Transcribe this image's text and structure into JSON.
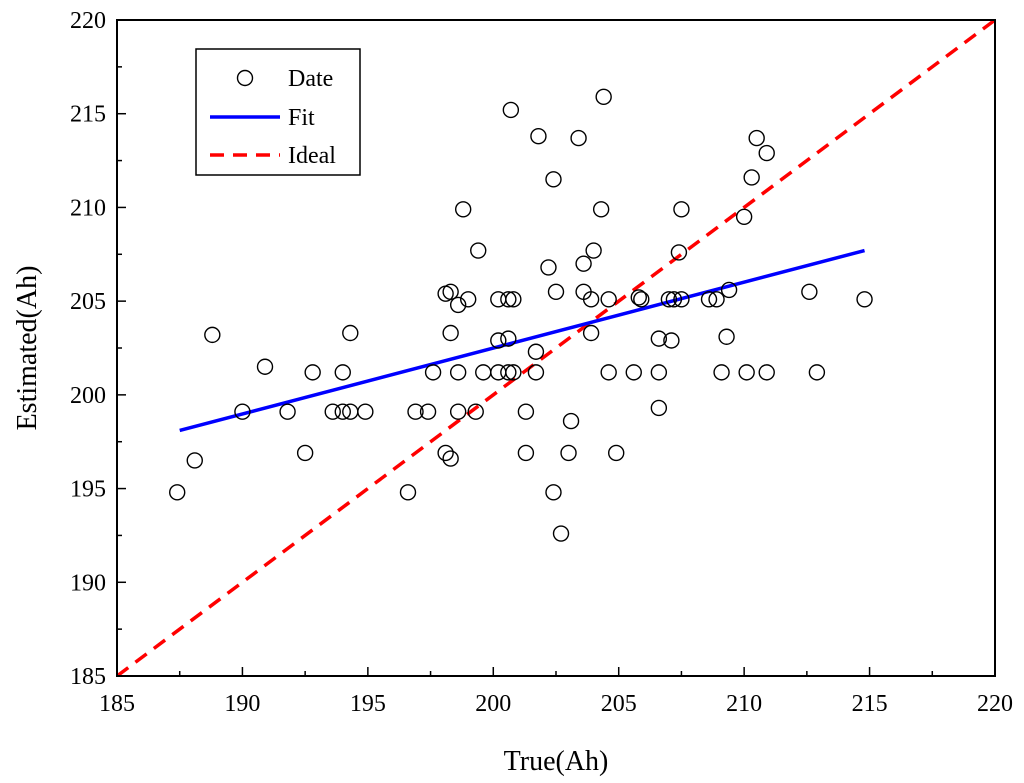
{
  "chart_data": {
    "type": "scatter",
    "xlabel": "True(Ah)",
    "ylabel": "Estimated(Ah)",
    "xlim": [
      185,
      220
    ],
    "ylim": [
      185,
      220
    ],
    "xticks": [
      "185",
      "190",
      "195",
      "200",
      "205",
      "210",
      "215",
      "220"
    ],
    "yticks": [
      "185",
      "190",
      "195",
      "200",
      "205",
      "210",
      "215",
      "220"
    ],
    "grid": false,
    "legend_position": "top-left",
    "series": [
      {
        "name": "Date",
        "kind": "scatter",
        "marker": "open-circle",
        "color": "#000000",
        "points": [
          [
            187.4,
            194.8
          ],
          [
            188.1,
            196.5
          ],
          [
            188.8,
            203.2
          ],
          [
            190.0,
            199.1
          ],
          [
            190.9,
            201.5
          ],
          [
            191.8,
            199.1
          ],
          [
            192.5,
            196.9
          ],
          [
            192.8,
            201.2
          ],
          [
            193.6,
            199.1
          ],
          [
            194.0,
            201.2
          ],
          [
            194.0,
            199.1
          ],
          [
            194.3,
            199.1
          ],
          [
            194.3,
            203.3
          ],
          [
            194.9,
            199.1
          ],
          [
            196.6,
            194.8
          ],
          [
            196.9,
            199.1
          ],
          [
            197.4,
            199.1
          ],
          [
            197.6,
            201.2
          ],
          [
            198.1,
            205.4
          ],
          [
            198.1,
            196.9
          ],
          [
            198.3,
            205.5
          ],
          [
            198.3,
            203.3
          ],
          [
            198.3,
            196.6
          ],
          [
            198.6,
            199.1
          ],
          [
            198.6,
            201.2
          ],
          [
            198.6,
            204.8
          ],
          [
            198.8,
            209.9
          ],
          [
            199.0,
            205.1
          ],
          [
            199.3,
            199.1
          ],
          [
            199.4,
            207.7
          ],
          [
            199.6,
            201.2
          ],
          [
            200.2,
            202.9
          ],
          [
            200.2,
            201.2
          ],
          [
            200.2,
            205.1
          ],
          [
            200.6,
            205.1
          ],
          [
            200.6,
            203.0
          ],
          [
            200.6,
            201.2
          ],
          [
            200.7,
            215.2
          ],
          [
            200.8,
            201.2
          ],
          [
            200.8,
            205.1
          ],
          [
            201.3,
            196.9
          ],
          [
            201.3,
            199.1
          ],
          [
            201.7,
            202.3
          ],
          [
            201.7,
            201.2
          ],
          [
            201.8,
            213.8
          ],
          [
            202.2,
            206.8
          ],
          [
            202.4,
            211.5
          ],
          [
            202.4,
            194.8
          ],
          [
            202.5,
            205.5
          ],
          [
            202.7,
            192.6
          ],
          [
            203.0,
            196.9
          ],
          [
            203.1,
            198.6
          ],
          [
            203.4,
            213.7
          ],
          [
            203.6,
            207.0
          ],
          [
            203.6,
            205.5
          ],
          [
            203.9,
            205.1
          ],
          [
            203.9,
            203.3
          ],
          [
            204.0,
            207.7
          ],
          [
            204.3,
            209.9
          ],
          [
            204.4,
            215.9
          ],
          [
            204.6,
            205.1
          ],
          [
            204.6,
            201.2
          ],
          [
            204.9,
            196.9
          ],
          [
            205.6,
            201.2
          ],
          [
            205.8,
            205.2
          ],
          [
            205.9,
            205.1
          ],
          [
            206.6,
            203.0
          ],
          [
            206.6,
            201.2
          ],
          [
            206.6,
            199.3
          ],
          [
            207.0,
            205.1
          ],
          [
            207.1,
            202.9
          ],
          [
            207.2,
            205.1
          ],
          [
            207.4,
            207.6
          ],
          [
            207.5,
            209.9
          ],
          [
            207.5,
            205.1
          ],
          [
            208.6,
            205.1
          ],
          [
            208.9,
            205.1
          ],
          [
            209.1,
            201.2
          ],
          [
            209.3,
            203.1
          ],
          [
            209.4,
            205.6
          ],
          [
            210.0,
            209.5
          ],
          [
            210.1,
            201.2
          ],
          [
            210.3,
            211.6
          ],
          [
            210.5,
            213.7
          ],
          [
            210.9,
            212.9
          ],
          [
            210.9,
            201.2
          ],
          [
            212.6,
            205.5
          ],
          [
            212.9,
            201.2
          ],
          [
            214.8,
            205.1
          ]
        ]
      },
      {
        "name": "Fit",
        "kind": "line",
        "style": "solid",
        "color": "#0000ff",
        "points": [
          [
            187.5,
            198.1
          ],
          [
            214.8,
            207.7
          ]
        ]
      },
      {
        "name": "Ideal",
        "kind": "line",
        "style": "dashed",
        "color": "#ff0000",
        "points": [
          [
            185,
            185
          ],
          [
            220,
            220
          ]
        ]
      }
    ]
  }
}
